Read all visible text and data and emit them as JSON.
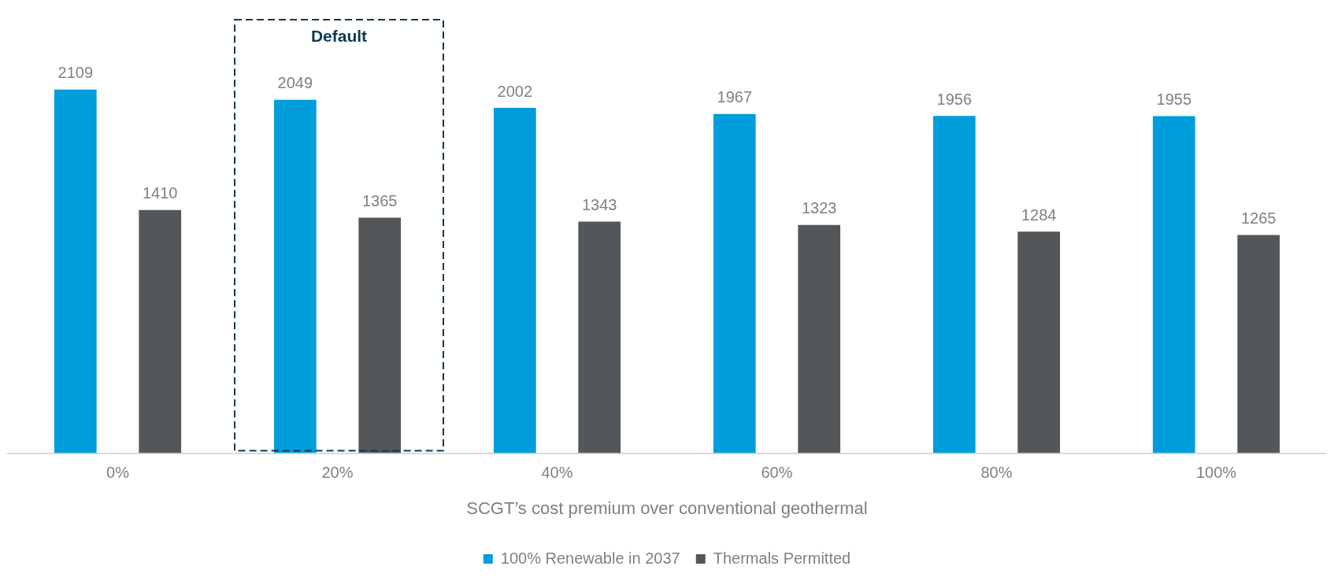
{
  "chart_data": {
    "type": "bar",
    "xlabel": "SCGT’s cost premium over conventional geothermal",
    "categories": [
      "0%",
      "20%",
      "40%",
      "60%",
      "80%",
      "100%"
    ],
    "series": [
      {
        "name": "100% Renewable in 2037",
        "color": "#009ddc",
        "values": [
          2109,
          2049,
          2002,
          1967,
          1956,
          1955
        ]
      },
      {
        "name": "Thermals Permitted",
        "color": "#53575a",
        "values": [
          1410,
          1365,
          1343,
          1323,
          1284,
          1265
        ]
      }
    ],
    "annotations": [
      "Default"
    ],
    "data_labels": true,
    "legend": "bottom",
    "grid": false
  }
}
